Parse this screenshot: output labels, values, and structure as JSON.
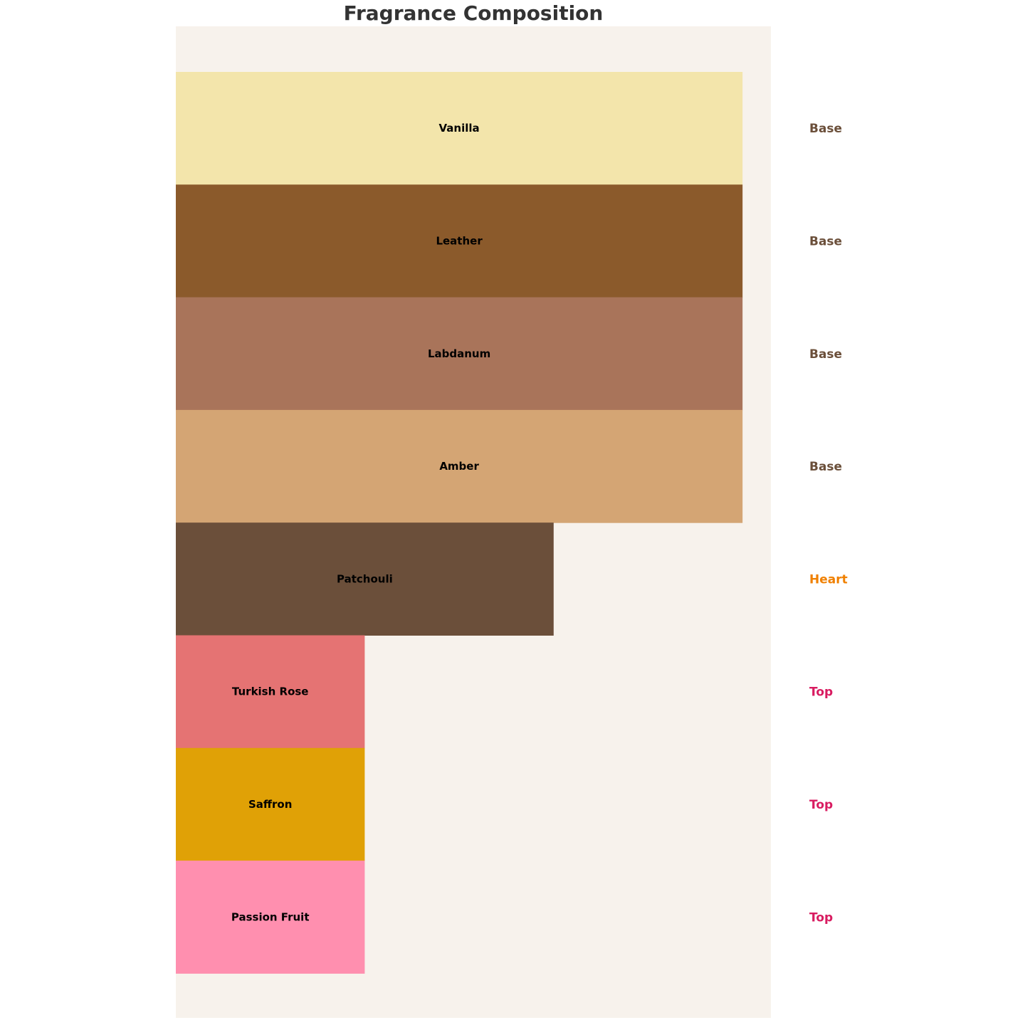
{
  "chart_data": {
    "type": "bar",
    "orientation": "horizontal",
    "title": "Fragrance Composition",
    "xlabel": "",
    "ylabel": "",
    "xlim": [
      0,
      3.15
    ],
    "grid": false,
    "axes_visible": false,
    "plot_background": "#F7F2EC",
    "categories": [
      "Vanilla",
      "Leather",
      "Labdanum",
      "Amber",
      "Patchouli",
      "Turkish Rose",
      "Saffron",
      "Passion Fruit"
    ],
    "values": [
      3,
      3,
      3,
      3,
      2,
      1,
      1,
      1
    ],
    "colors": [
      "#F3E5AB",
      "#8B5A2B",
      "#A9745A",
      "#D4A574",
      "#6B4F3A",
      "#E57373",
      "#E0A106",
      "#FF8FAF"
    ],
    "note_types": [
      "Base",
      "Base",
      "Base",
      "Base",
      "Heart",
      "Top",
      "Top",
      "Top"
    ],
    "note_type_colors": {
      "Base": "#6B4F3A",
      "Heart": "#F08000",
      "Top": "#D81B60"
    }
  }
}
